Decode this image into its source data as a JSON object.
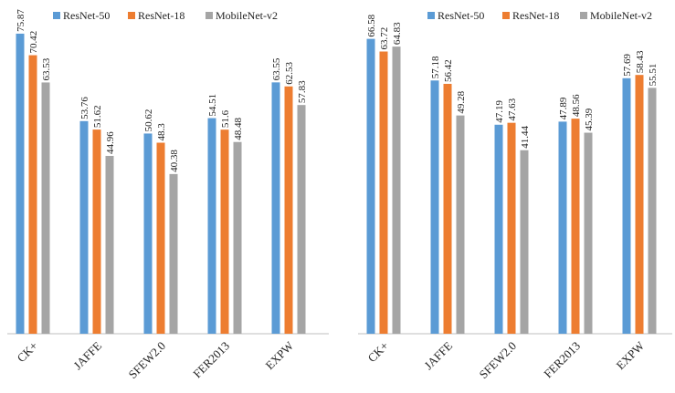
{
  "chart_data": [
    {
      "type": "bar",
      "categories": [
        "CK+",
        "JAFFE",
        "SFEW2.0",
        "FER2013",
        "EXPW"
      ],
      "series": [
        {
          "name": "ResNet-50",
          "color": "#5b9bd5",
          "values": [
            75.87,
            53.76,
            50.62,
            54.51,
            63.55
          ]
        },
        {
          "name": "ResNet-18",
          "color": "#ed7d31",
          "values": [
            70.42,
            51.62,
            48.3,
            51.6,
            62.53
          ]
        },
        {
          "name": "MobileNet-v2",
          "color": "#a5a5a5",
          "values": [
            63.53,
            44.96,
            40.38,
            48.48,
            57.83
          ]
        }
      ],
      "ylim": [
        0,
        80
      ]
    },
    {
      "type": "bar",
      "categories": [
        "CK+",
        "JAFFE",
        "SFEW2.0",
        "FER2013",
        "EXPW"
      ],
      "series": [
        {
          "name": "ResNet-50",
          "color": "#5b9bd5",
          "values": [
            66.58,
            57.18,
            47.19,
            47.89,
            57.69
          ]
        },
        {
          "name": "ResNet-18",
          "color": "#ed7d31",
          "values": [
            63.72,
            56.42,
            47.63,
            48.56,
            58.43
          ]
        },
        {
          "name": "MobileNet-v2",
          "color": "#a5a5a5",
          "values": [
            64.83,
            49.28,
            41.44,
            45.39,
            55.51
          ]
        }
      ],
      "ylim": [
        0,
        70
      ]
    }
  ]
}
